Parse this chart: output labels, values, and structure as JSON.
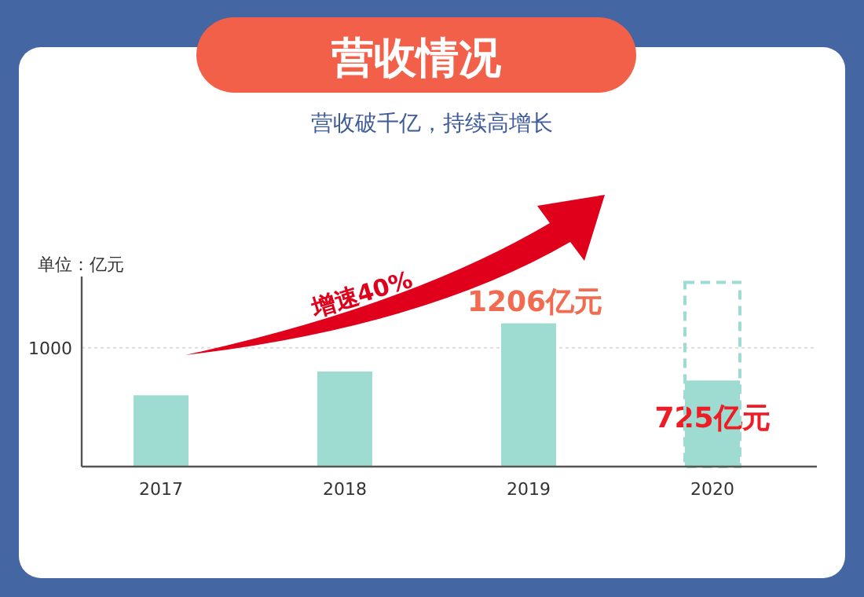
{
  "chart_data": {
    "type": "bar",
    "title": "营收情况",
    "subtitle": "营收破千亿，持续高增长",
    "ylabel": "单位：亿元",
    "categories": [
      "2017",
      "2018",
      "2019",
      "2020"
    ],
    "series": [
      {
        "color": "#9edcd1",
        "values": [
          600,
          800,
          1206,
          725
        ],
        "value_labels": [
          null,
          null,
          "1206亿元",
          "725亿元"
        ]
      },
      {
        "color": "#9edcd1",
        "values": [
          null,
          null,
          null,
          1550
        ],
        "line_style": "dashed"
      }
    ],
    "ylim": [
      0,
      1600
    ],
    "yticks": [
      {
        "value": 0,
        "label": null
      },
      1000
    ],
    "grid": "y",
    "annotations": [
      "增速40%"
    ]
  }
}
